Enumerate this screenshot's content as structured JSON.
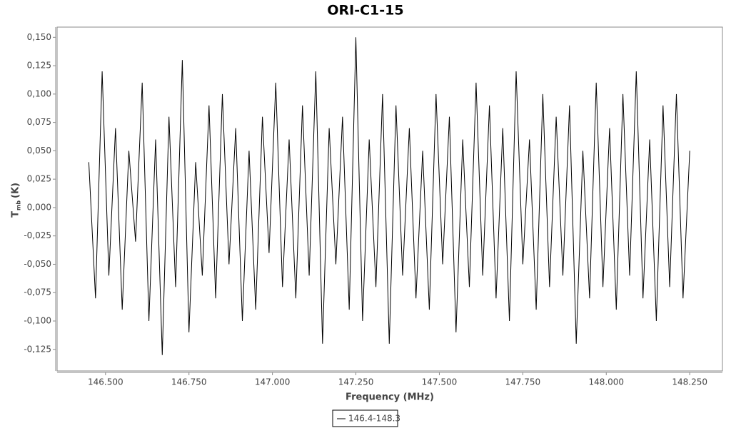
{
  "chart_data": {
    "type": "line",
    "title": "ORI-C1-15",
    "x_label": "Frequency (MHz)",
    "y_label": {
      "main": "T",
      "sub": "mb",
      "unit": "(K)"
    },
    "legend": "bottom",
    "xlim": [
      146.355,
      148.348
    ],
    "ylim": [
      -0.144,
      0.159
    ],
    "xticks": [
      {
        "value": 146.5,
        "label": "146.500"
      },
      {
        "value": 146.75,
        "label": "146.750"
      },
      {
        "value": 147,
        "label": "147.000"
      },
      {
        "value": 147.25,
        "label": "147.250"
      },
      {
        "value": 147.5,
        "label": "147.500"
      },
      {
        "value": 147.75,
        "label": "147.750"
      },
      {
        "value": 148,
        "label": "148.000"
      },
      {
        "value": 148.25,
        "label": "148.250"
      }
    ],
    "yticks": [
      {
        "value": -0.125,
        "label": "-0,125"
      },
      {
        "value": -0.1,
        "label": "-0,100"
      },
      {
        "value": -0.075,
        "label": "-0,075"
      },
      {
        "value": -0.05,
        "label": "-0,050"
      },
      {
        "value": -0.025,
        "label": "-0,025"
      },
      {
        "value": 0,
        "label": "0,000"
      },
      {
        "value": 0.025,
        "label": "0,025"
      },
      {
        "value": 0.05,
        "label": "0,050"
      },
      {
        "value": 0.075,
        "label": "0,075"
      },
      {
        "value": 0.1,
        "label": "0,100"
      },
      {
        "value": 0.125,
        "label": "0,125"
      },
      {
        "value": 0.15,
        "label": "0,150"
      }
    ],
    "x": [
      146.45,
      146.47,
      146.49,
      146.51,
      146.53,
      146.55,
      146.57,
      146.59,
      146.61,
      146.63,
      146.65,
      146.67,
      146.69,
      146.71,
      146.73,
      146.75,
      146.77,
      146.79,
      146.81,
      146.83,
      146.85,
      146.87,
      146.89,
      146.91,
      146.93,
      146.95,
      146.97,
      146.99,
      147.01,
      147.03,
      147.05,
      147.07,
      147.09,
      147.11,
      147.13,
      147.15,
      147.17,
      147.19,
      147.21,
      147.23,
      147.25,
      147.27,
      147.29,
      147.31,
      147.33,
      147.35,
      147.37,
      147.39,
      147.41,
      147.43,
      147.45,
      147.47,
      147.49,
      147.51,
      147.53,
      147.55,
      147.57,
      147.59,
      147.61,
      147.63,
      147.65,
      147.67,
      147.69,
      147.71,
      147.73,
      147.75,
      147.77,
      147.79,
      147.81,
      147.83,
      147.85,
      147.87,
      147.89,
      147.91,
      147.93,
      147.95,
      147.97,
      147.99,
      148.01,
      148.03,
      148.05,
      148.07,
      148.09,
      148.11,
      148.13,
      148.15,
      148.17,
      148.19,
      148.21,
      148.23,
      148.25
    ],
    "series": [
      {
        "name": "146.4-148.3",
        "color": "#000000",
        "values": [
          0.04,
          -0.08,
          0.12,
          -0.06,
          0.07,
          -0.09,
          0.05,
          -0.03,
          0.11,
          -0.1,
          0.06,
          -0.13,
          0.08,
          -0.07,
          0.13,
          -0.11,
          0.04,
          -0.06,
          0.09,
          -0.08,
          0.1,
          -0.05,
          0.07,
          -0.1,
          0.05,
          -0.09,
          0.08,
          -0.04,
          0.11,
          -0.07,
          0.06,
          -0.08,
          0.09,
          -0.06,
          0.12,
          -0.12,
          0.07,
          -0.05,
          0.08,
          -0.09,
          0.15,
          -0.1,
          0.06,
          -0.07,
          0.1,
          -0.12,
          0.09,
          -0.06,
          0.07,
          -0.08,
          0.05,
          -0.09,
          0.1,
          -0.05,
          0.08,
          -0.11,
          0.06,
          -0.07,
          0.11,
          -0.06,
          0.09,
          -0.08,
          0.07,
          -0.1,
          0.12,
          -0.05,
          0.06,
          -0.09,
          0.1,
          -0.07,
          0.08,
          -0.06,
          0.09,
          -0.12,
          0.05,
          -0.08,
          0.11,
          -0.07,
          0.07,
          -0.09,
          0.1,
          -0.06,
          0.12,
          -0.08,
          0.06,
          -0.1,
          0.09,
          -0.07,
          0.1,
          -0.08,
          0.05
        ]
      }
    ]
  }
}
